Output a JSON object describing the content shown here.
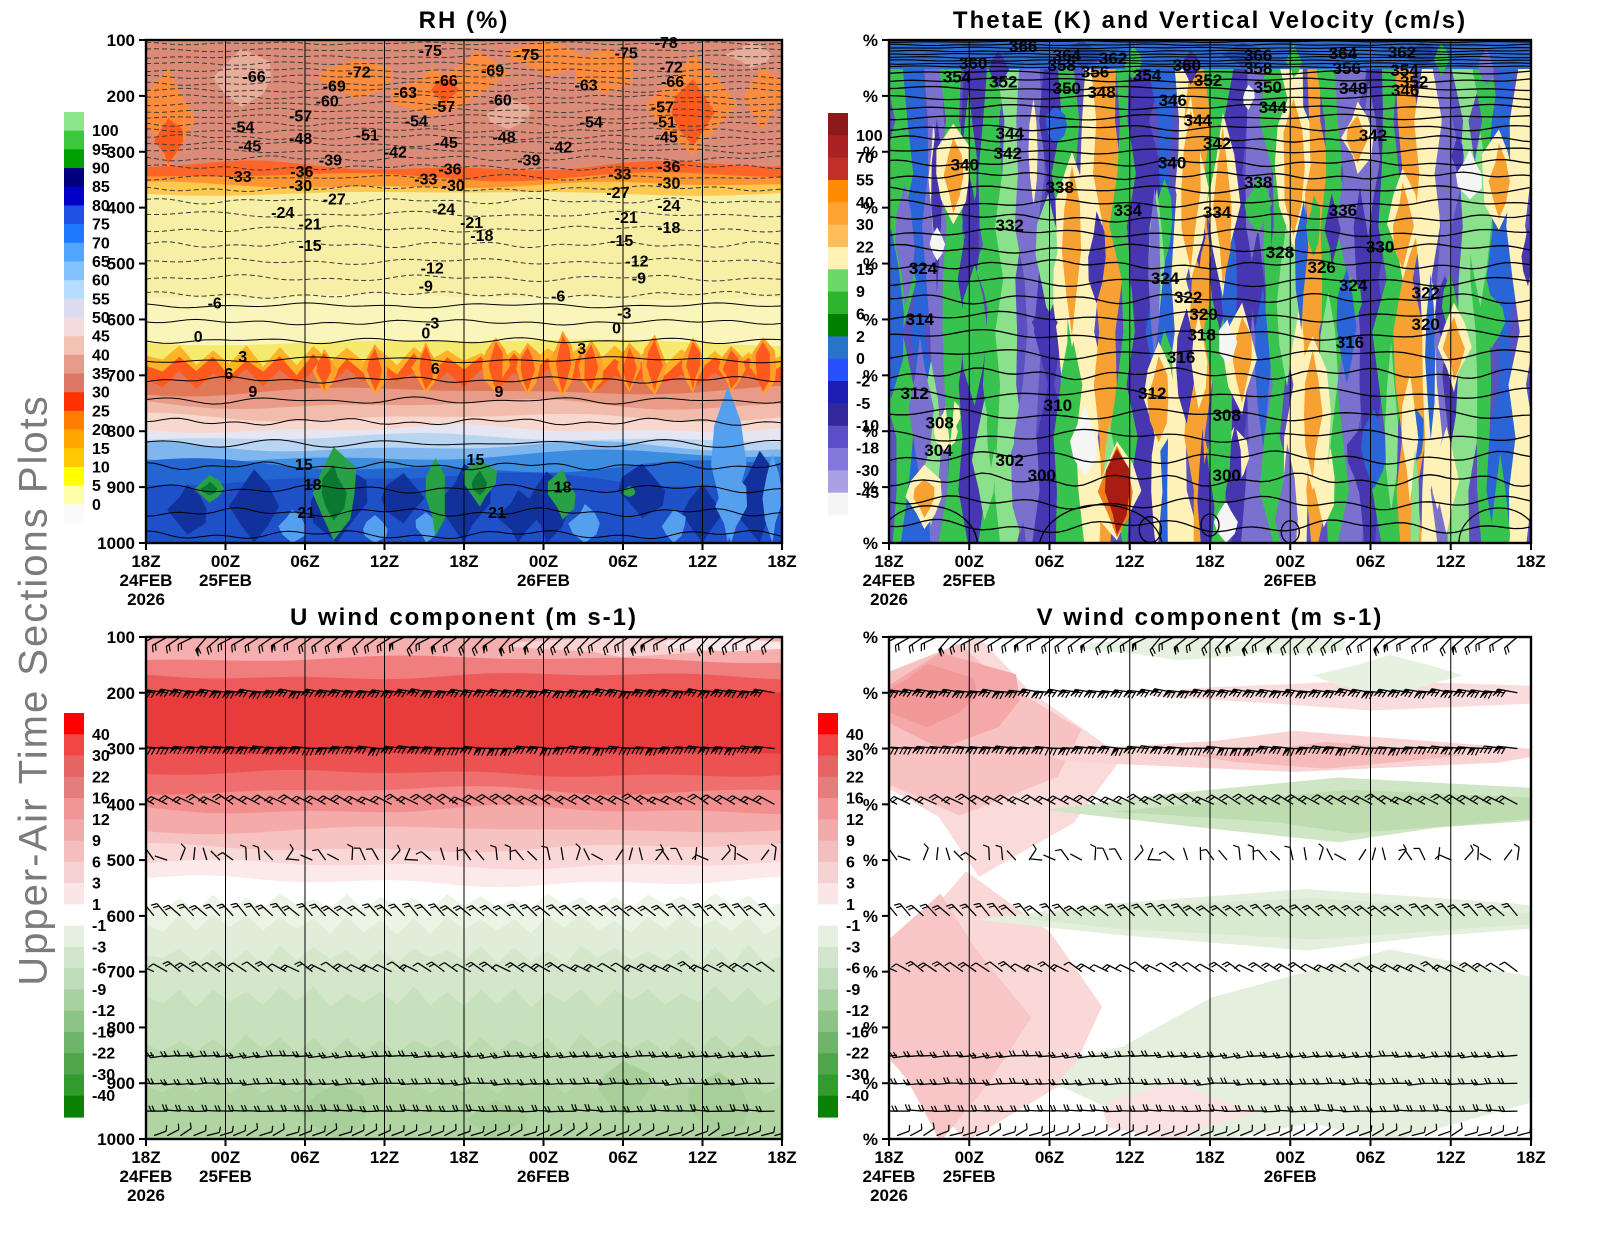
{
  "vertical_title": "Upper-Air Time Sections Plots",
  "chart_data": {
    "type": "contour",
    "description": "Four-panel upper-air time-height cross sections, shaded contour fields with overlaid line contours and wind barbs",
    "x_axis": {
      "ticks": [
        "18Z",
        "00Z",
        "06Z",
        "12Z",
        "18Z",
        "00Z",
        "06Z",
        "12Z",
        "18Z"
      ],
      "day_labels": [
        {
          "tick": 0,
          "text": "24FEB"
        },
        {
          "tick": 1,
          "text": "25FEB"
        },
        {
          "tick": 5,
          "text": "26FEB"
        }
      ],
      "year_label": {
        "tick": 0,
        "text": "2026"
      }
    },
    "y_axis_left_panels": {
      "tick_labels": [
        "100",
        "200",
        "300",
        "400",
        "500",
        "600",
        "700",
        "800",
        "900",
        "1000"
      ]
    },
    "y_axis_right_panels": {
      "tick_label": "%",
      "count": 10
    },
    "panels": [
      {
        "id": "rh",
        "title": "RH (%)",
        "shaded_variable": "Relative humidity (%)",
        "contour_variable": "Temperature (dashed negative / solid positive)",
        "colorbar": {
          "labels": [
            "100",
            "95",
            "90",
            "85",
            "80",
            "75",
            "70",
            "65",
            "60",
            "55",
            "50",
            "45",
            "40",
            "35",
            "30",
            "25",
            "20",
            "15",
            "10",
            "5",
            "0"
          ],
          "colors": [
            "#8ce68c",
            "#3cc83c",
            "#00a000",
            "#000080",
            "#0000c8",
            "#1e50e6",
            "#1e78ff",
            "#50a5ff",
            "#82c3ff",
            "#b4dcff",
            "#dcdcf0",
            "#f5dcdc",
            "#f0c3b4",
            "#e69b8c",
            "#dc7864",
            "#ff3200",
            "#ff7d00",
            "#ffa500",
            "#ffc800",
            "#ffff00",
            "#ffffaa",
            "#fafafa"
          ]
        },
        "contour_labels": [
          [
            "-75",
            0.447,
            0.02
          ],
          [
            "-75",
            0.6,
            0.028
          ],
          [
            "-75",
            0.755,
            0.025
          ],
          [
            "-78",
            0.818,
            0.004
          ],
          [
            "-72",
            0.335,
            0.063
          ],
          [
            "-72",
            0.826,
            0.053
          ],
          [
            "-69",
            0.296,
            0.09
          ],
          [
            "-69",
            0.545,
            0.06
          ],
          [
            "-66",
            0.17,
            0.072
          ],
          [
            "-66",
            0.472,
            0.08
          ],
          [
            "-66",
            0.828,
            0.082
          ],
          [
            "-63",
            0.408,
            0.103
          ],
          [
            "-63",
            0.692,
            0.088
          ],
          [
            "-60",
            0.285,
            0.12
          ],
          [
            "-60",
            0.557,
            0.118
          ],
          [
            "-57",
            0.243,
            0.15
          ],
          [
            "-57",
            0.468,
            0.131
          ],
          [
            "-57",
            0.812,
            0.132
          ],
          [
            "-54",
            0.152,
            0.172
          ],
          [
            "-54",
            0.425,
            0.16
          ],
          [
            "-54",
            0.7,
            0.162
          ],
          [
            "-51",
            0.348,
            0.188
          ],
          [
            "-51",
            0.815,
            0.162
          ],
          [
            "-48",
            0.243,
            0.195
          ],
          [
            "-48",
            0.563,
            0.192
          ],
          [
            "-45",
            0.163,
            0.21
          ],
          [
            "-45",
            0.472,
            0.203
          ],
          [
            "-45",
            0.818,
            0.192
          ],
          [
            "-42",
            0.392,
            0.222
          ],
          [
            "-42",
            0.652,
            0.212
          ],
          [
            "-39",
            0.29,
            0.238
          ],
          [
            "-39",
            0.602,
            0.238
          ],
          [
            "-36",
            0.245,
            0.26
          ],
          [
            "-36",
            0.478,
            0.255
          ],
          [
            "-36",
            0.822,
            0.25
          ],
          [
            "-33",
            0.148,
            0.27
          ],
          [
            "-33",
            0.44,
            0.275
          ],
          [
            "-33",
            0.745,
            0.265
          ],
          [
            "-30",
            0.243,
            0.288
          ],
          [
            "-30",
            0.483,
            0.288
          ],
          [
            "-30",
            0.822,
            0.283
          ],
          [
            "-27",
            0.296,
            0.315
          ],
          [
            "-27",
            0.742,
            0.302
          ],
          [
            "-24",
            0.215,
            0.342
          ],
          [
            "-24",
            0.468,
            0.335
          ],
          [
            "-24",
            0.822,
            0.328
          ],
          [
            "-21",
            0.258,
            0.365
          ],
          [
            "-21",
            0.512,
            0.362
          ],
          [
            "-21",
            0.755,
            0.352
          ],
          [
            "-18",
            0.528,
            0.388
          ],
          [
            "-18",
            0.822,
            0.372
          ],
          [
            "-15",
            0.258,
            0.408
          ],
          [
            "-15",
            0.748,
            0.398
          ],
          [
            "-12",
            0.45,
            0.452
          ],
          [
            "-12",
            0.772,
            0.438
          ],
          [
            "-9",
            0.44,
            0.488
          ],
          [
            "-9",
            0.775,
            0.472
          ],
          [
            "-6",
            0.108,
            0.522
          ],
          [
            "-6",
            0.648,
            0.508
          ],
          [
            "-3",
            0.45,
            0.562
          ],
          [
            "-3",
            0.752,
            0.542
          ],
          [
            "0",
            0.082,
            0.588
          ],
          [
            "0",
            0.44,
            0.582
          ],
          [
            "0",
            0.74,
            0.572
          ],
          [
            "3",
            0.152,
            0.628
          ],
          [
            "3",
            0.685,
            0.612
          ],
          [
            "6",
            0.13,
            0.662
          ],
          [
            "6",
            0.455,
            0.652
          ],
          [
            "9",
            0.168,
            0.698
          ],
          [
            "9",
            0.555,
            0.698
          ],
          [
            "15",
            0.248,
            0.843
          ],
          [
            "15",
            0.518,
            0.833
          ],
          [
            "18",
            0.262,
            0.883
          ],
          [
            "18",
            0.655,
            0.888
          ],
          [
            "21",
            0.252,
            0.938
          ],
          [
            "21",
            0.552,
            0.938
          ]
        ]
      },
      {
        "id": "thetae",
        "title": "ThetaE (K) and Vertical Velocity (cm/s)",
        "shaded_variable": "Vertical velocity (cm/s)",
        "contour_variable": "Equivalent potential temperature ThetaE (K)",
        "colorbar": {
          "labels": [
            "100",
            "70",
            "55",
            "40",
            "30",
            "22",
            "15",
            "9",
            "6",
            "2",
            "0",
            "-2",
            "-5",
            "-10",
            "-18",
            "-30",
            "-45"
          ],
          "colors": [
            "#8b1a1a",
            "#aa2222",
            "#c03028",
            "#ff8c00",
            "#ffa432",
            "#ffbe5a",
            "#fff0b4",
            "#69d869",
            "#2eb42e",
            "#008000",
            "#2874c8",
            "#2850ff",
            "#1e1eb4",
            "#32289b",
            "#5a50c8",
            "#8278dc",
            "#aaa0e6",
            "#f5f5f5"
          ]
        },
        "contour_labels": [
          [
            "366",
            0.209,
            0.012
          ],
          [
            "366",
            0.575,
            0.03
          ],
          [
            "364",
            0.277,
            0.03
          ],
          [
            "364",
            0.707,
            0.026
          ],
          [
            "362",
            0.349,
            0.036
          ],
          [
            "362",
            0.799,
            0.024
          ],
          [
            "360",
            0.131,
            0.046
          ],
          [
            "360",
            0.464,
            0.05
          ],
          [
            "358",
            0.269,
            0.05
          ],
          [
            "358",
            0.575,
            0.056
          ],
          [
            "356",
            0.321,
            0.063
          ],
          [
            "356",
            0.713,
            0.056
          ],
          [
            "354",
            0.106,
            0.073
          ],
          [
            "354",
            0.402,
            0.07
          ],
          [
            "354",
            0.803,
            0.06
          ],
          [
            "352",
            0.178,
            0.083
          ],
          [
            "352",
            0.497,
            0.08
          ],
          [
            "352",
            0.818,
            0.083
          ],
          [
            "350",
            0.277,
            0.095
          ],
          [
            "350",
            0.59,
            0.093
          ],
          [
            "348",
            0.331,
            0.103
          ],
          [
            "348",
            0.723,
            0.095
          ],
          [
            "346",
            0.442,
            0.119
          ],
          [
            "346",
            0.804,
            0.099
          ],
          [
            "344",
            0.188,
            0.185
          ],
          [
            "344",
            0.481,
            0.159
          ],
          [
            "344",
            0.598,
            0.133
          ],
          [
            "342",
            0.185,
            0.225
          ],
          [
            "342",
            0.511,
            0.205
          ],
          [
            "342",
            0.754,
            0.189
          ],
          [
            "340",
            0.118,
            0.248
          ],
          [
            "340",
            0.441,
            0.244
          ],
          [
            "338",
            0.266,
            0.292
          ],
          [
            "338",
            0.575,
            0.282
          ],
          [
            "336",
            0.707,
            0.338
          ],
          [
            "334",
            0.372,
            0.338
          ],
          [
            "334",
            0.511,
            0.342
          ],
          [
            "332",
            0.188,
            0.368
          ],
          [
            "330",
            0.765,
            0.411
          ],
          [
            "328",
            0.609,
            0.421
          ],
          [
            "326",
            0.674,
            0.451
          ],
          [
            "324",
            0.053,
            0.453
          ],
          [
            "324",
            0.43,
            0.473
          ],
          [
            "324",
            0.723,
            0.487
          ],
          [
            "322",
            0.466,
            0.511
          ],
          [
            "322",
            0.836,
            0.502
          ],
          [
            "320",
            0.49,
            0.545
          ],
          [
            "320",
            0.836,
            0.565
          ],
          [
            "318",
            0.487,
            0.585
          ],
          [
            "316",
            0.455,
            0.63
          ],
          [
            "316",
            0.718,
            0.6
          ],
          [
            "314",
            0.048,
            0.555
          ],
          [
            "312",
            0.04,
            0.702
          ],
          [
            "312",
            0.41,
            0.702
          ],
          [
            "310",
            0.263,
            0.726
          ],
          [
            "308",
            0.079,
            0.76
          ],
          [
            "308",
            0.526,
            0.746
          ],
          [
            "304",
            0.077,
            0.815
          ],
          [
            "302",
            0.188,
            0.835
          ],
          [
            "300",
            0.238,
            0.865
          ],
          [
            "300",
            0.526,
            0.865
          ]
        ]
      },
      {
        "id": "u",
        "title": "U wind component (m s-1)",
        "shaded_variable": "U wind component (m/s)",
        "colorbar": {
          "labels": [
            "40",
            "30",
            "22",
            "16",
            "12",
            "9",
            "6",
            "3",
            "1",
            "-1",
            "-3",
            "-6",
            "-9",
            "-12",
            "-16",
            "-22",
            "-30",
            "-40"
          ],
          "colors": [
            "#ff0000",
            "#f04646",
            "#e66464",
            "#e67d7d",
            "#f09696",
            "#f0aaaa",
            "#f5bebe",
            "#f5d2d2",
            "#fae6e6",
            "#ffffff",
            "#e6f0e1",
            "#d2e6cd",
            "#bedcb9",
            "#a5d2a0",
            "#8cc387",
            "#6eb469",
            "#50a54b",
            "#329b2d",
            "#0a8205"
          ]
        },
        "barb_levels": [
          100,
          200,
          300,
          400,
          500,
          600,
          700,
          850,
          900,
          950,
          1000
        ]
      },
      {
        "id": "v",
        "title": "V wind component (m s-1)",
        "shaded_variable": "V wind component (m/s)",
        "colorbar": {
          "labels": [
            "40",
            "30",
            "22",
            "16",
            "12",
            "9",
            "6",
            "3",
            "1",
            "-1",
            "-3",
            "-6",
            "-9",
            "-12",
            "-16",
            "-22",
            "-30",
            "-40"
          ],
          "colors": [
            "#ff0000",
            "#f04646",
            "#e66464",
            "#e67d7d",
            "#f09696",
            "#f0aaaa",
            "#f5bebe",
            "#f5d2d2",
            "#fae6e6",
            "#ffffff",
            "#e6f0e1",
            "#d2e6cd",
            "#bedcb9",
            "#a5d2a0",
            "#8cc387",
            "#6eb469",
            "#50a54b",
            "#329b2d",
            "#0a8205"
          ]
        }
      }
    ]
  }
}
